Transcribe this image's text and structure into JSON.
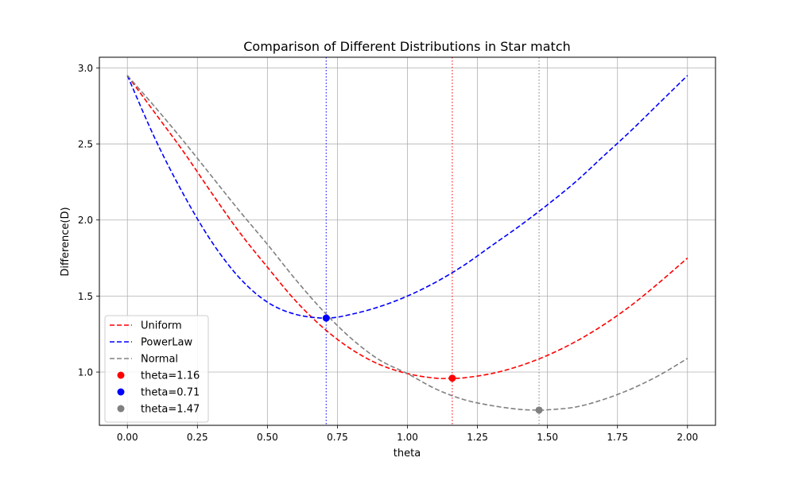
{
  "chart_data": {
    "type": "line",
    "title": "Comparison of Different Distributions in Star match",
    "xlabel": "theta",
    "ylabel": "Difference(D)",
    "xlim": [
      -0.1,
      2.1
    ],
    "ylim": [
      0.65,
      3.07
    ],
    "xticks": [
      0.0,
      0.25,
      0.5,
      0.75,
      1.0,
      1.25,
      1.5,
      1.75,
      2.0
    ],
    "xtick_labels": [
      "0.00",
      "0.25",
      "0.50",
      "0.75",
      "1.00",
      "1.25",
      "1.50",
      "1.75",
      "2.00"
    ],
    "yticks": [
      1.0,
      1.5,
      2.0,
      2.5,
      3.0
    ],
    "ytick_labels": [
      "1.0",
      "1.5",
      "2.0",
      "2.5",
      "3.0"
    ],
    "grid": true,
    "legend_position": "lower-left",
    "series": [
      {
        "name": "Uniform",
        "color": "#ff0000",
        "style": "dashed",
        "x": [
          0.0,
          0.1,
          0.2,
          0.3,
          0.4,
          0.5,
          0.6,
          0.7,
          0.8,
          0.9,
          1.0,
          1.1,
          1.16,
          1.2,
          1.3,
          1.4,
          1.5,
          1.6,
          1.7,
          1.8,
          1.9,
          2.0
        ],
        "y": [
          2.95,
          2.7,
          2.45,
          2.18,
          1.92,
          1.69,
          1.47,
          1.29,
          1.15,
          1.05,
          0.99,
          0.96,
          0.96,
          0.962,
          0.99,
          1.04,
          1.11,
          1.2,
          1.31,
          1.44,
          1.59,
          1.75
        ]
      },
      {
        "name": "PowerLaw",
        "color": "#0000ff",
        "style": "dashed",
        "x": [
          0.0,
          0.1,
          0.2,
          0.3,
          0.4,
          0.5,
          0.6,
          0.71,
          0.8,
          0.9,
          1.0,
          1.1,
          1.2,
          1.3,
          1.4,
          1.5,
          1.6,
          1.7,
          1.8,
          1.9,
          2.0
        ],
        "y": [
          2.95,
          2.53,
          2.17,
          1.86,
          1.62,
          1.46,
          1.38,
          1.355,
          1.38,
          1.43,
          1.5,
          1.59,
          1.7,
          1.83,
          1.96,
          2.1,
          2.25,
          2.42,
          2.59,
          2.77,
          2.95
        ]
      },
      {
        "name": "Normal",
        "color": "#808080",
        "style": "dashed",
        "x": [
          0.0,
          0.1,
          0.2,
          0.3,
          0.4,
          0.5,
          0.6,
          0.7,
          0.8,
          0.9,
          1.0,
          1.1,
          1.2,
          1.3,
          1.4,
          1.47,
          1.5,
          1.6,
          1.7,
          1.8,
          1.9,
          2.0
        ],
        "y": [
          2.95,
          2.74,
          2.52,
          2.29,
          2.06,
          1.84,
          1.61,
          1.4,
          1.22,
          1.08,
          0.99,
          0.89,
          0.82,
          0.78,
          0.755,
          0.75,
          0.752,
          0.77,
          0.82,
          0.89,
          0.98,
          1.09
        ]
      }
    ],
    "markers": [
      {
        "name": "theta=1.16",
        "color": "#ff0000",
        "x": 1.16,
        "y": 0.96
      },
      {
        "name": "theta=0.71",
        "color": "#0000ff",
        "x": 0.71,
        "y": 1.355
      },
      {
        "name": "theta=1.47",
        "color": "#808080",
        "x": 1.47,
        "y": 0.75
      }
    ],
    "vlines": [
      {
        "x": 0.71,
        "color": "#0000ff",
        "style": "dotted"
      },
      {
        "x": 1.16,
        "color": "#ff0000",
        "style": "dotted"
      },
      {
        "x": 1.47,
        "color": "#808080",
        "style": "dotted"
      }
    ]
  }
}
